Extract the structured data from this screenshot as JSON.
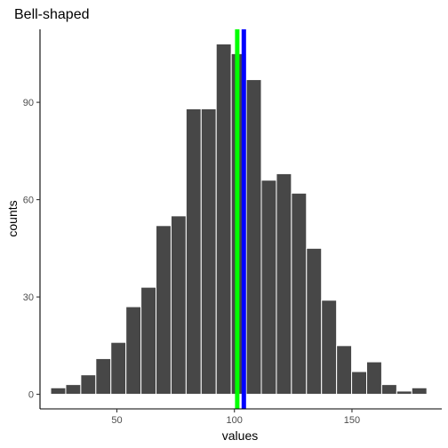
{
  "chart_data": {
    "type": "bar",
    "title": "Bell-shaped",
    "xlabel": "values",
    "ylabel": "counts",
    "xlim": [
      17.3,
      188.2
    ],
    "ylim": [
      -4.5,
      112.5
    ],
    "xticks": [
      50,
      100,
      150
    ],
    "yticks": [
      0,
      30,
      60,
      90
    ],
    "bin_width": 6.4,
    "bin_start": 21.85,
    "counts": [
      2,
      3,
      6,
      11,
      16,
      27,
      33,
      52,
      55,
      88,
      88,
      108,
      105,
      97,
      66,
      68,
      62,
      45,
      29,
      15,
      7,
      10,
      3,
      1,
      2
    ],
    "reference_lines": [
      {
        "value": 101.2,
        "color": "#00ff00"
      },
      {
        "value": 104.0,
        "color": "#0000ff"
      }
    ],
    "colors": {
      "bar_fill": "#474747",
      "bar_outline": "#ffffff"
    }
  }
}
